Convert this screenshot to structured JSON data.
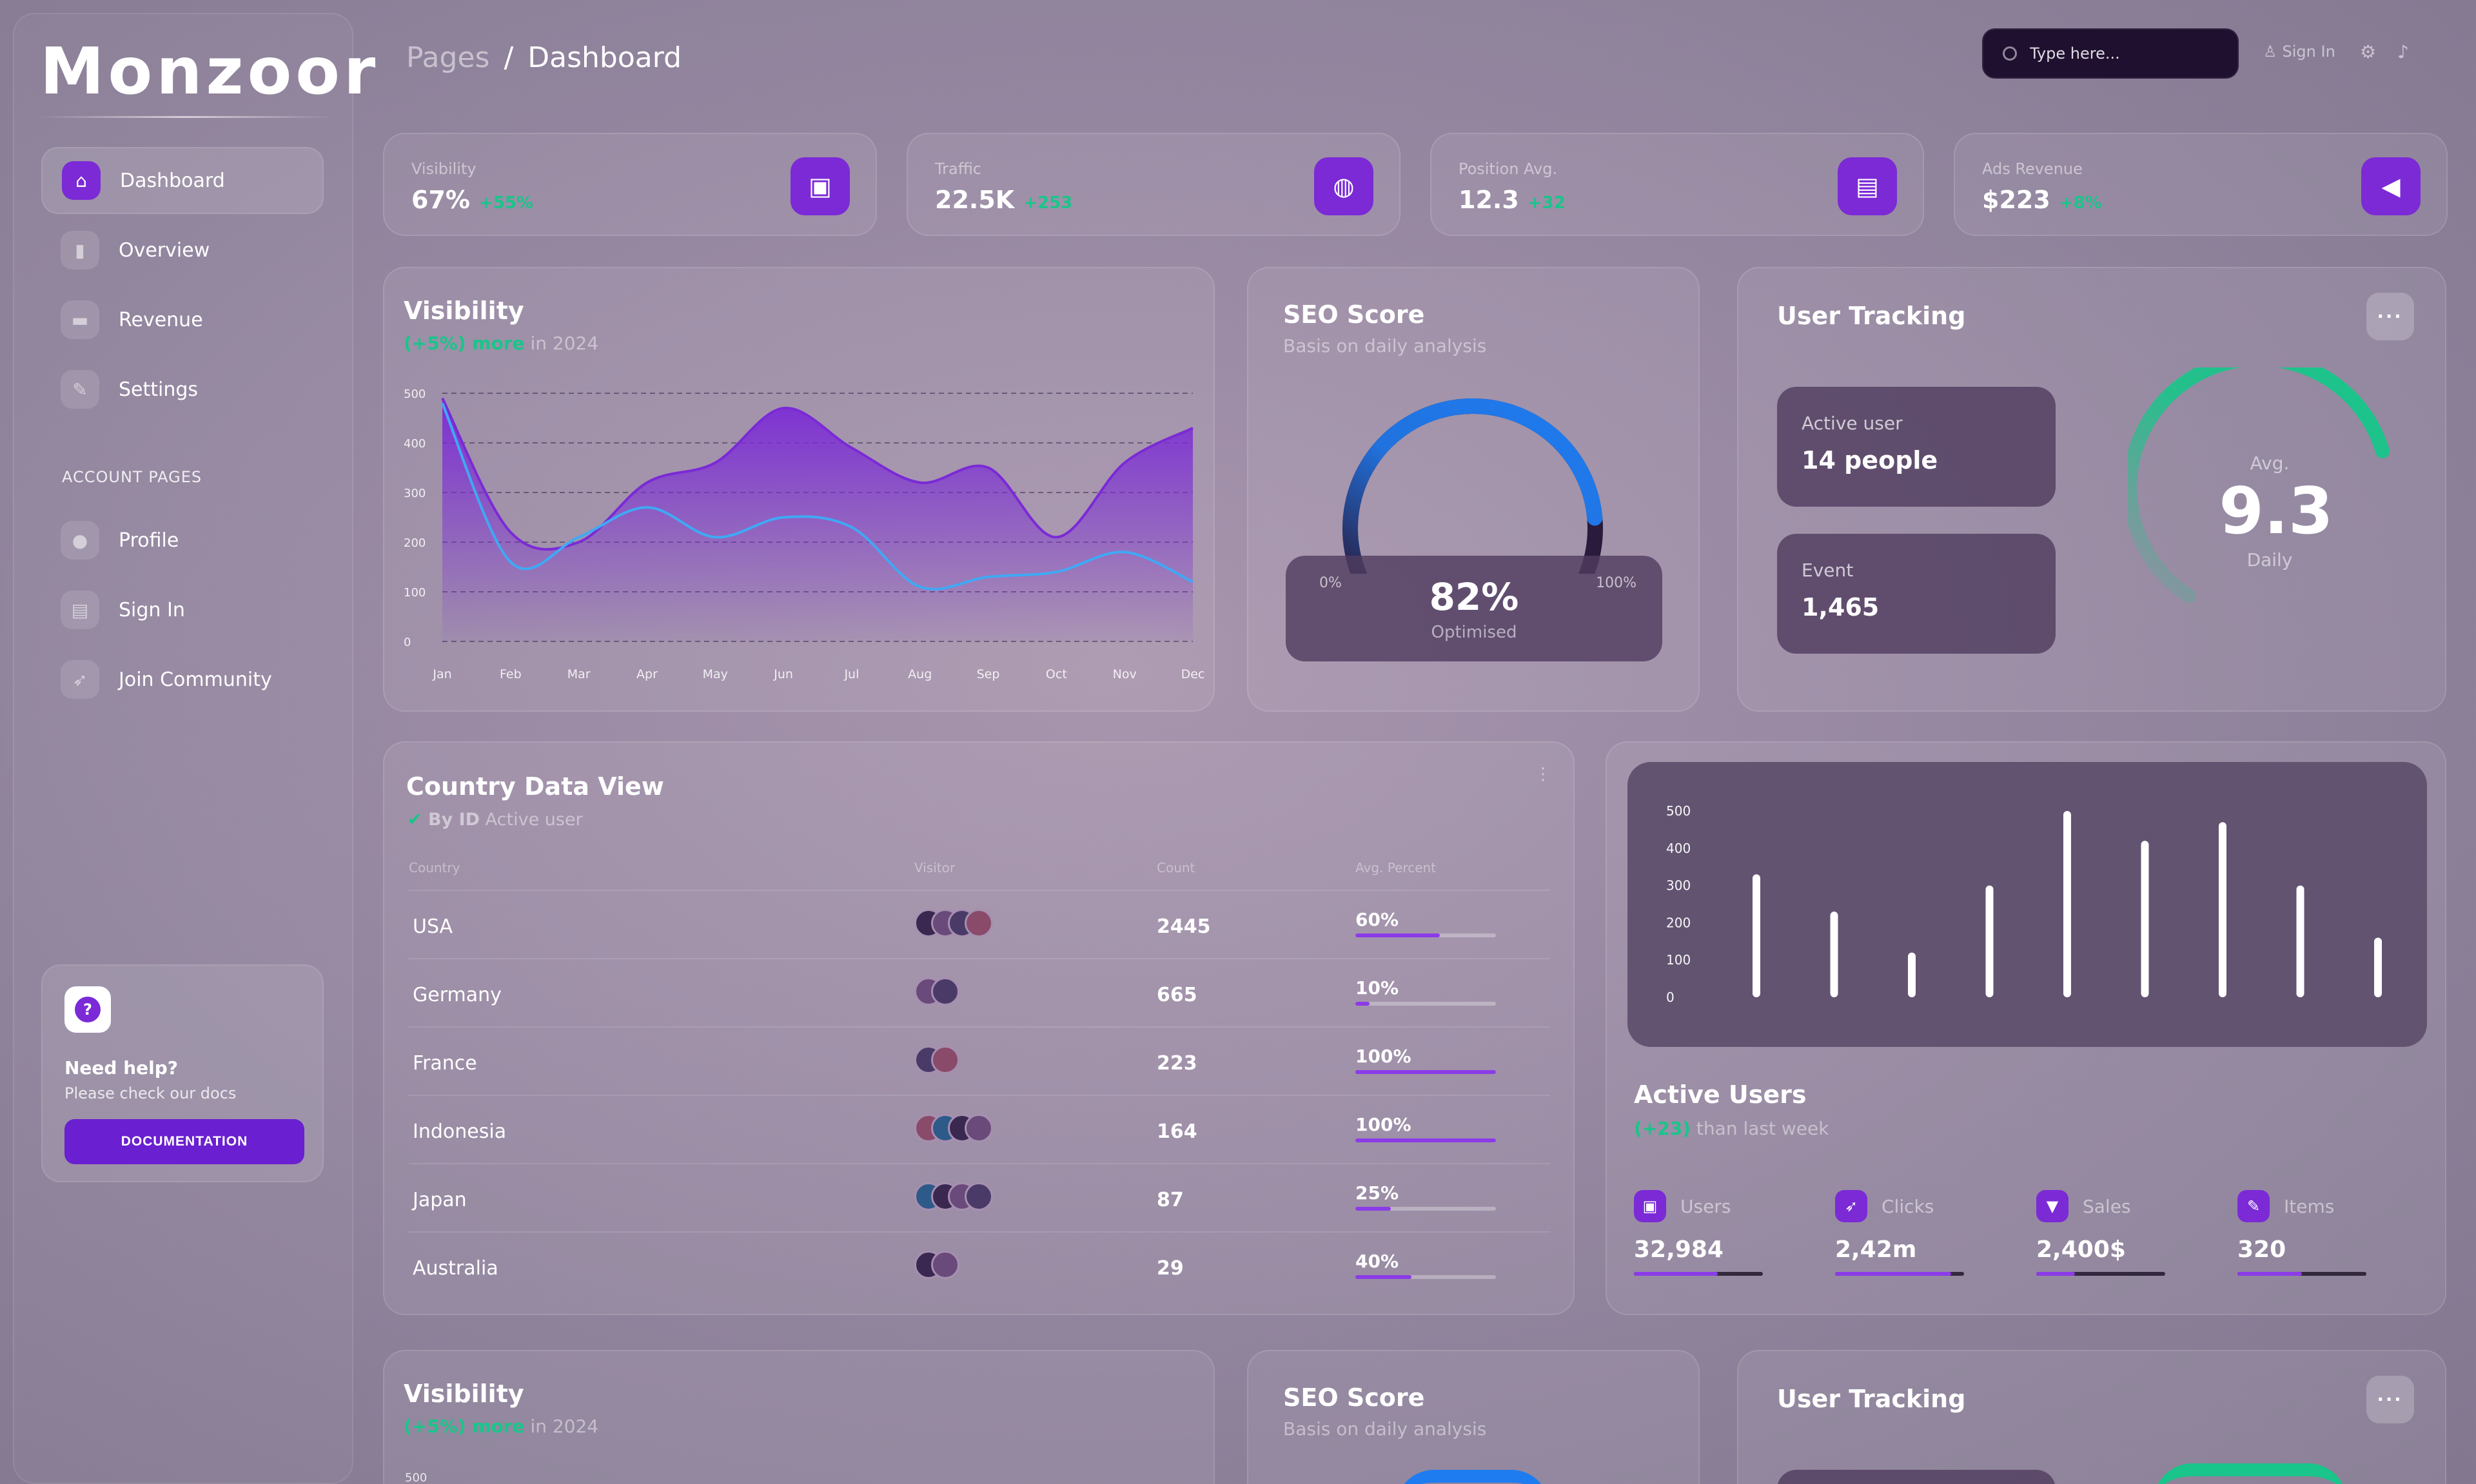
{
  "sidebar": {
    "logo": "Monzoor",
    "items": [
      {
        "label": "Dashboard",
        "icon": "home-icon",
        "glyph": "⌂"
      },
      {
        "label": "Overview",
        "icon": "bar-chart-icon",
        "glyph": "▮"
      },
      {
        "label": "Revenue",
        "icon": "credit-card-icon",
        "glyph": "▬"
      },
      {
        "label": "Settings",
        "icon": "wrench-icon",
        "glyph": "✎"
      }
    ],
    "section_label": "ACCOUNT PAGES",
    "account_items": [
      {
        "label": "Profile",
        "icon": "person-icon",
        "glyph": "●"
      },
      {
        "label": "Sign In",
        "icon": "document-icon",
        "glyph": "▤"
      },
      {
        "label": "Join Community",
        "icon": "rocket-icon",
        "glyph": "➶"
      }
    ],
    "help": {
      "title": "Need help?",
      "subtitle": "Please check our docs",
      "button": "DOCUMENTATION"
    }
  },
  "header": {
    "breadcrumb_parent": "Pages",
    "breadcrumb_sep": "/",
    "breadcrumb_current": "Dashboard",
    "search_placeholder": "Type here...",
    "signin_label": "Sign In"
  },
  "stats": [
    {
      "label": "Visibility",
      "value": "67%",
      "delta": "+55%",
      "icon": "wallet-icon",
      "glyph": "▣"
    },
    {
      "label": "Traffic",
      "value": "22.5K",
      "delta": "+253",
      "icon": "globe-icon",
      "glyph": "◍"
    },
    {
      "label": "Position Avg.",
      "value": "12.3",
      "delta": "+32",
      "icon": "file-icon",
      "glyph": "▤"
    },
    {
      "label": "Ads Revenue",
      "value": "$223",
      "delta": "+8%",
      "icon": "megaphone-icon",
      "glyph": "◀"
    }
  ],
  "visibility_card": {
    "title": "Visibility",
    "sub_highlight": "(+5%) more",
    "sub_rest": " in 2024"
  },
  "seo_card": {
    "title": "SEO Score",
    "subtitle": "Basis on daily analysis",
    "value": "82%",
    "caption": "Optimised",
    "min": "0%",
    "max": "100%",
    "score": 0.82
  },
  "tracking_card": {
    "title": "User Tracking",
    "active_label": "Active user",
    "active_value": "14 people",
    "event_label": "Event",
    "event_value": "1,465",
    "avg_label": "Avg.",
    "avg_value": "9.3",
    "avg_caption": "Daily"
  },
  "country_card": {
    "title": "Country Data View",
    "sub_bold": "By ID",
    "sub_rest": " Active user",
    "headers": [
      "Country",
      "Visitor",
      "Count",
      "Avg. Percent"
    ],
    "rows": [
      {
        "country": "USA",
        "avatars": 4,
        "count": "2445",
        "pct": "60%",
        "fill": 0.6
      },
      {
        "country": "Germany",
        "avatars": 2,
        "count": "665",
        "pct": "10%",
        "fill": 0.1
      },
      {
        "country": "France",
        "avatars": 2,
        "count": "223",
        "pct": "100%",
        "fill": 1.0
      },
      {
        "country": "Indonesia",
        "avatars": 4,
        "count": "164",
        "pct": "100%",
        "fill": 1.0
      },
      {
        "country": "Japan",
        "avatars": 4,
        "count": "87",
        "pct": "25%",
        "fill": 0.25
      },
      {
        "country": "Australia",
        "avatars": 2,
        "count": "29",
        "pct": "40%",
        "fill": 0.4
      }
    ]
  },
  "active_users": {
    "title": "Active Users",
    "sub_highlight": "(+23)",
    "sub_rest": " than last week",
    "stats": [
      {
        "label": "Users",
        "value": "32,984",
        "fill": 0.65,
        "icon": "wallet-icon",
        "glyph": "▣"
      },
      {
        "label": "Clicks",
        "value": "2,42m",
        "fill": 0.9,
        "icon": "rocket-icon",
        "glyph": "➶"
      },
      {
        "label": "Sales",
        "value": "2,400$",
        "fill": 0.3,
        "icon": "cart-icon",
        "glyph": "▼"
      },
      {
        "label": "Items",
        "value": "320",
        "fill": 0.5,
        "icon": "wrench-icon",
        "glyph": "✎"
      }
    ]
  },
  "bottom_cards": {
    "visibility_title": "Visibility",
    "visibility_sub_highlight": "(+5%) more",
    "visibility_sub_rest": " in 2024",
    "visibility_tick": "500",
    "seo_title": "SEO Score",
    "seo_subtitle": "Basis on daily analysis",
    "tracking_title": "User Tracking"
  },
  "chart_data": [
    {
      "type": "area",
      "categories": [
        "Jan",
        "Feb",
        "Mar",
        "Apr",
        "May",
        "Jun",
        "Jul",
        "Aug",
        "Sep",
        "Oct",
        "Nov",
        "Dec"
      ],
      "series": [
        {
          "values": [
            490,
            220,
            200,
            320,
            360,
            470,
            390,
            320,
            350,
            210,
            360,
            430
          ],
          "color": "#7b2ad6"
        },
        {
          "values": [
            480,
            160,
            210,
            270,
            210,
            250,
            230,
            110,
            130,
            140,
            180,
            120
          ],
          "color": "#3fa9f5"
        }
      ],
      "ylim": [
        0,
        500
      ],
      "yticks": [
        0,
        100,
        200,
        300,
        400,
        500
      ],
      "grid": true
    },
    {
      "type": "bar",
      "values": [
        330,
        230,
        120,
        300,
        500,
        420,
        470,
        300,
        160
      ],
      "ylim": [
        0,
        500
      ],
      "yticks": [
        0,
        100,
        200,
        300,
        400,
        500
      ],
      "grid": false
    }
  ]
}
